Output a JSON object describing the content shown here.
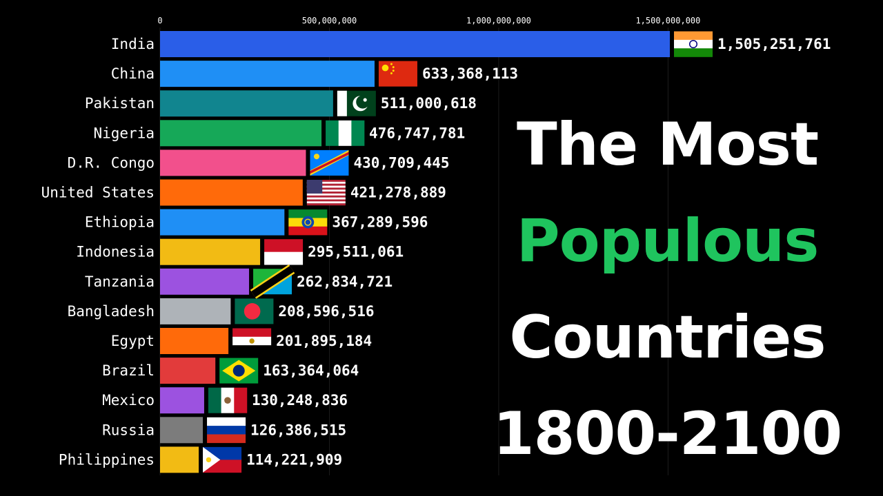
{
  "title": {
    "line1": "The Most",
    "line2": "Populous",
    "line3": "Countries",
    "line4": "1800-2100"
  },
  "colors": {
    "background": "#000000",
    "accent": "#1fc45e"
  },
  "chart_data": {
    "type": "bar",
    "orientation": "horizontal",
    "xlim": [
      0,
      1505251761
    ],
    "x_ticks": [
      {
        "value": 0,
        "label": "0"
      },
      {
        "value": 500000000,
        "label": "500,000,000"
      },
      {
        "value": 1000000000,
        "label": "1,000,000,000"
      },
      {
        "value": 1500000000,
        "label": "1,500,000,000"
      }
    ],
    "categories": [
      "India",
      "China",
      "Pakistan",
      "Nigeria",
      "D.R. Congo",
      "United States",
      "Ethiopia",
      "Indonesia",
      "Tanzania",
      "Bangladesh",
      "Egypt",
      "Brazil",
      "Mexico",
      "Russia",
      "Philippines"
    ],
    "values": [
      1505251761,
      633368113,
      511000618,
      476747781,
      430709445,
      421278889,
      367289596,
      295511061,
      262834721,
      208596516,
      201895184,
      163364064,
      130248836,
      126386515,
      114221909
    ],
    "value_labels": [
      "1,505,251,761",
      "633,368,113",
      "511,000,618",
      "476,747,781",
      "430,709,445",
      "421,278,889",
      "367,289,596",
      "295,511,061",
      "262,834,721",
      "208,596,516",
      "201,895,184",
      "163,364,064",
      "130,248,836",
      "126,386,515",
      "114,221,909"
    ],
    "bar_colors": [
      "#2a5ee8",
      "#1f8ff5",
      "#11858f",
      "#16a858",
      "#f2508c",
      "#ff6a0a",
      "#1f8ff5",
      "#f2bb14",
      "#9c52e0",
      "#aeb3b8",
      "#ff6a0a",
      "#e23b3b",
      "#9c52e0",
      "#7c7c7c",
      "#f2bb14"
    ],
    "flags": [
      "india-flag",
      "china-flag",
      "pakistan-flag",
      "nigeria-flag",
      "dr-congo-flag",
      "united-states-flag",
      "ethiopia-flag",
      "indonesia-flag",
      "tanzania-flag",
      "bangladesh-flag",
      "egypt-flag",
      "brazil-flag",
      "mexico-flag",
      "russia-flag",
      "philippines-flag"
    ],
    "grid": true
  }
}
